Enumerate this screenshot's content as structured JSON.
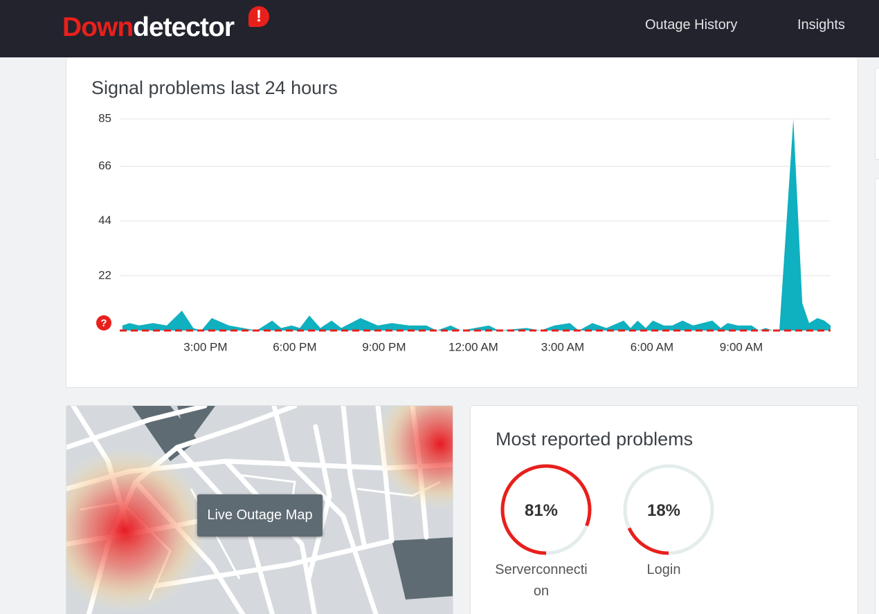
{
  "header": {
    "logo": [
      "Down",
      "detector"
    ],
    "nav": [
      "Outage History",
      "Insights"
    ]
  },
  "chart_data": {
    "type": "area",
    "title": "Signal problems last 24 hours",
    "color": "#0fb0bf",
    "x": [
      0.21,
      0.45,
      0.77,
      1.24,
      1.7,
      2.21,
      2.59,
      2.86,
      3.21,
      3.79,
      4.26,
      4.72,
      5.24,
      5.54,
      5.89,
      6.17,
      6.49,
      6.86,
      7.24,
      7.56,
      8.21,
      8.79,
      9.26,
      9.84,
      10.42,
      10.77,
      11.24,
      11.59,
      12.52,
      12.86,
      13.79,
      14.26,
      14.72,
      15.24,
      15.54,
      16.0,
      16.47,
      17.05,
      17.28,
      17.52,
      17.79,
      18.03,
      18.4,
      18.68,
      19.03,
      19.38,
      20.03,
      20.31,
      20.54,
      20.89,
      21.35,
      21.59,
      21.82,
      22.05,
      22.28,
      22.75,
      23.05,
      23.28,
      23.56,
      23.79,
      24.0
    ],
    "values": [
      2,
      3,
      2,
      3,
      2,
      8,
      1,
      0,
      5,
      2,
      1,
      0,
      4,
      1,
      2,
      1,
      6,
      1,
      4,
      1,
      5,
      2,
      3,
      2,
      2,
      0,
      2,
      0,
      2,
      0,
      1,
      0,
      2,
      3,
      0,
      3,
      1,
      4,
      1,
      4,
      1,
      4,
      2,
      2,
      4,
      2,
      4,
      1,
      3,
      2,
      2,
      0,
      1,
      0,
      0,
      85,
      11,
      3,
      5,
      4,
      2
    ],
    "xlim": [
      0.12,
      24.0
    ],
    "xticks": [
      {
        "value": 3,
        "label": "3:00 PM"
      },
      {
        "value": 6,
        "label": "6:00 PM"
      },
      {
        "value": 9,
        "label": "9:00 PM"
      },
      {
        "value": 12,
        "label": "12:00 AM"
      },
      {
        "value": 15,
        "label": "3:00 AM"
      },
      {
        "value": 18,
        "label": "6:00 AM"
      },
      {
        "value": 21,
        "label": "9:00 AM"
      }
    ],
    "ylim": [
      0,
      85
    ],
    "yticks": [
      22,
      44,
      66,
      85
    ],
    "grid": true
  },
  "map": {
    "button": "Live Outage Map"
  },
  "problems": {
    "title": "Most reported problems",
    "color": "#e8201c",
    "items": [
      {
        "name": "Serverconnection",
        "value": 81,
        "value_label": "81%"
      },
      {
        "name": "Login",
        "value": 18,
        "value_label": "18%"
      }
    ]
  }
}
